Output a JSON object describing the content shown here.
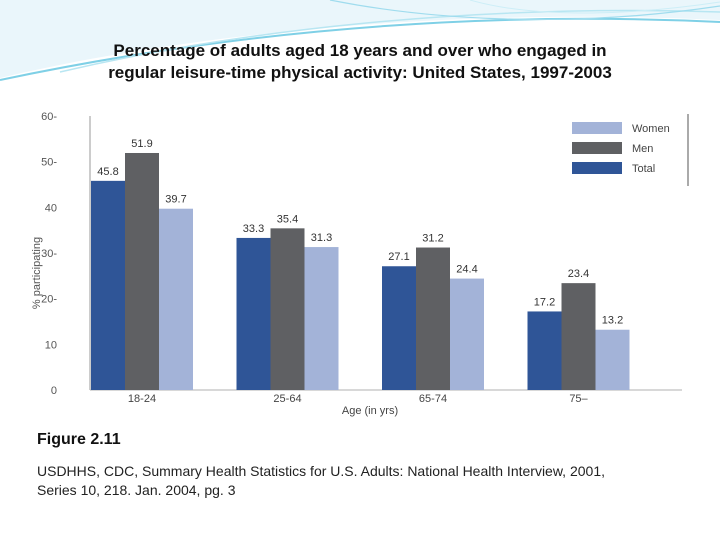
{
  "slide": {
    "title_lines": [
      "Percentage of adults aged 18 years and over who engaged in",
      "regular leisure-time physical activity: United States, 1997-2003"
    ],
    "figure_label": "Figure 2.11",
    "source_lines": [
      "USDHHS, CDC, Summary Health Statistics for U.S. Adults: National Health Interview, 2001,",
      "Series 10, 218. Jan. 2004, pg. 3"
    ]
  },
  "chart_data": {
    "type": "bar",
    "xlabel": "Age (in yrs)",
    "ylabel": "% participating",
    "categories": [
      "18-24",
      "25-64",
      "65-74",
      "75–"
    ],
    "ylim": [
      0,
      60
    ],
    "yticks": [
      0,
      10,
      20,
      30,
      40,
      50,
      60
    ],
    "ytick_labels": [
      "0",
      "10",
      "20-",
      "30-",
      "40",
      "50-",
      "60-"
    ],
    "series": [
      {
        "name": "Total",
        "color": "#2f5597",
        "values": [
          45.8,
          33.3,
          27.1,
          17.2
        ],
        "labels": [
          "45.8",
          "33.3",
          "27.1",
          "17.2"
        ]
      },
      {
        "name": "Men",
        "color": "#5f6063",
        "values": [
          51.9,
          35.4,
          31.2,
          23.4
        ],
        "labels": [
          "51.9",
          "35.4",
          "31.2",
          "23.4"
        ]
      },
      {
        "name": "Women",
        "color": "#a3b3d8",
        "values": [
          39.7,
          31.3,
          24.4,
          13.2
        ],
        "labels": [
          "39.7",
          "31.3",
          "24.4",
          "13.2"
        ]
      }
    ],
    "legend": {
      "position": "top-right",
      "order": [
        "Women",
        "Men",
        "Total"
      ]
    }
  }
}
